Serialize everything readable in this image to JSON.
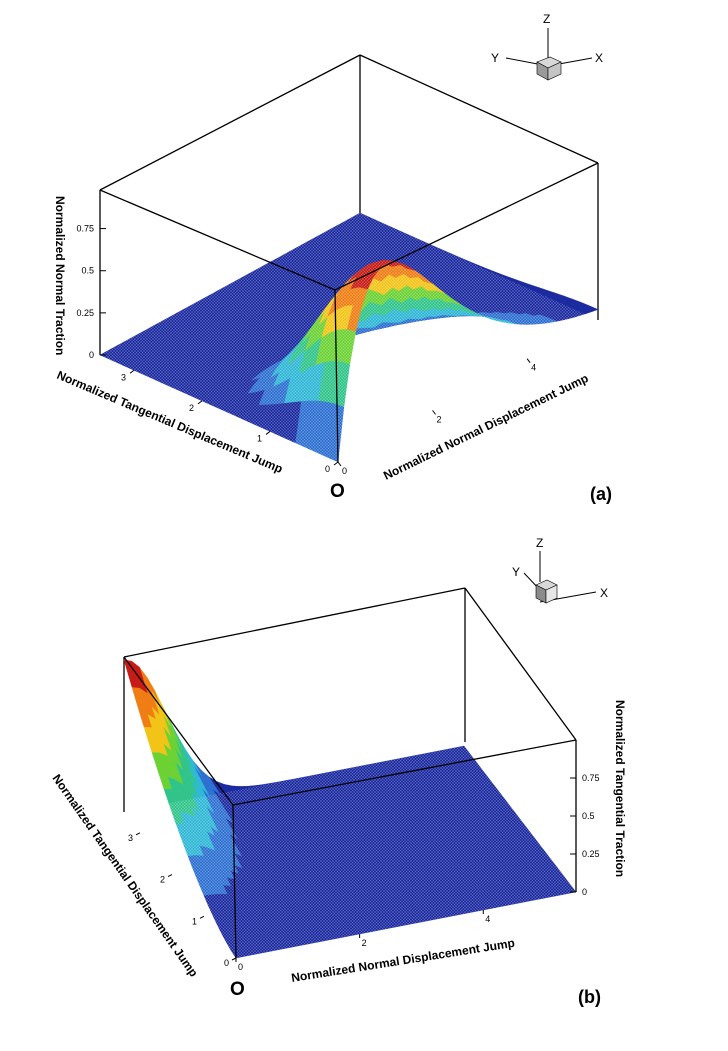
{
  "chart_data": [
    {
      "type": "surface",
      "panel_label": "(a)",
      "origin_label": "O",
      "xlabel": "Normalized Normal Displacement Jump",
      "ylabel": "Normalized Tangential Displacement Jump",
      "zlabel": "Normalized Normal Traction",
      "x_ticks": [
        "0",
        "2",
        "4"
      ],
      "y_ticks": [
        "0",
        "1",
        "2",
        "3"
      ],
      "z_ticks": [
        "0",
        "0.25",
        "0.5",
        "0.75"
      ],
      "xlim": [
        0,
        5.5
      ],
      "ylim": [
        0,
        3.5
      ],
      "zlim": [
        0,
        1
      ],
      "surface": "normal traction peaks ≈1 at normal jump ≈1 and tangential jump 0, decaying to 0 with increasing jumps",
      "triad": {
        "z": "Z",
        "y": "Y",
        "x": "X"
      },
      "colormap": [
        "#1c2aa0",
        "#2d6fd0",
        "#2fb7d6",
        "#31c48a",
        "#6cd234",
        "#f2c418",
        "#ef7d14",
        "#c61b16"
      ]
    },
    {
      "type": "surface",
      "panel_label": "(b)",
      "origin_label": "O",
      "xlabel": "Normalized Normal Displacement Jump",
      "ylabel": "Normalized Tangential Displacement Jump",
      "zlabel": "Normalized Tangential Traction",
      "x_ticks": [
        "0",
        "2",
        "4"
      ],
      "y_ticks": [
        "0",
        "1",
        "2",
        "3"
      ],
      "z_ticks": [
        "0",
        "0.25",
        "0.5",
        "0.75"
      ],
      "xlim": [
        0,
        5.5
      ],
      "ylim": [
        0,
        3.5
      ],
      "zlim": [
        0,
        1
      ],
      "surface": "tangential traction rises with tangential jump toward 1 at normal jump 0 and decays to 0 with increasing normal jump",
      "triad": {
        "z": "Z",
        "y": "Y",
        "x": "X"
      },
      "colormap": [
        "#1c2aa0",
        "#2d6fd0",
        "#2fb7d6",
        "#31c48a",
        "#6cd234",
        "#f2c418",
        "#ef7d14",
        "#c61b16"
      ]
    }
  ]
}
